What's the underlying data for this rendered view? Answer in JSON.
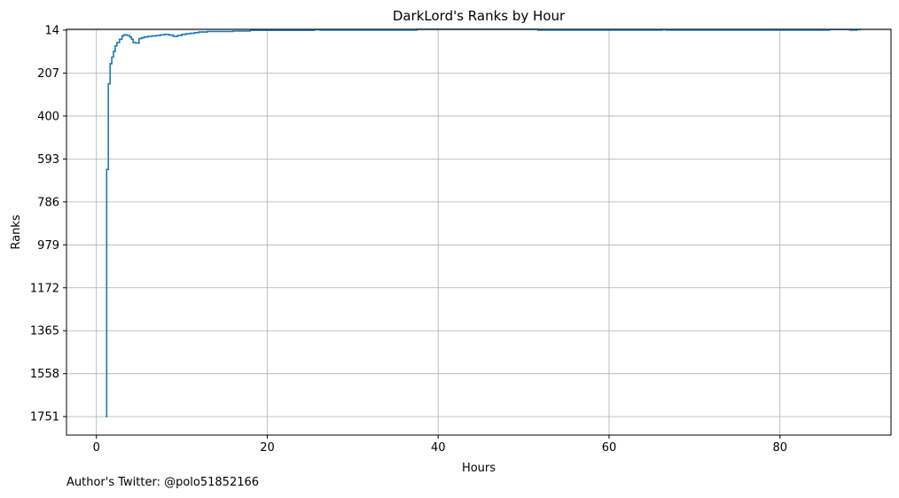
{
  "footer": {
    "text": "Author's Twitter: @polo51852166"
  },
  "colors": {
    "line": "#1f77b4",
    "grid": "#b0b0b0",
    "axis": "#000000",
    "background": "#ffffff"
  },
  "chart_data": {
    "type": "line",
    "drawstyle": "step",
    "title": "DarkLord's Ranks by Hour",
    "xlabel": "Hours",
    "ylabel": "Ranks",
    "y_inverted": true,
    "grid": true,
    "xlim": [
      -3.5,
      93
    ],
    "ylim": [
      1834,
      10
    ],
    "xticks": [
      0,
      20,
      40,
      60,
      80
    ],
    "xtick_labels": [
      "0",
      "20",
      "40",
      "60",
      "80"
    ],
    "yticks": [
      14,
      207,
      400,
      593,
      786,
      979,
      1172,
      1365,
      1558,
      1751
    ],
    "ytick_labels": [
      "14",
      "207",
      "400",
      "593",
      "786",
      "979",
      "1172",
      "1365",
      "1558",
      "1751"
    ],
    "series": [
      {
        "color": "#1f77b4",
        "x": [
          1.1,
          1.2,
          1.4,
          1.6,
          1.8,
          2.0,
          2.2,
          2.4,
          2.7,
          3.0,
          3.2,
          3.6,
          3.9,
          4.1,
          4.3,
          4.6,
          5.0,
          5.3,
          5.6,
          6.0,
          6.5,
          7.0,
          7.5,
          8.0,
          8.5,
          9.0,
          9.5,
          10.0,
          10.5,
          11.0,
          11.5,
          12.0,
          13.0,
          16.0,
          18.0,
          25.5,
          26.2,
          37.5,
          51.7,
          66.2,
          66.7,
          84.8,
          85.8,
          88.2,
          89.0,
          89.4
        ],
        "y": [
          1751,
          640,
          255,
          165,
          135,
          110,
          85,
          70,
          55,
          40,
          35,
          38,
          45,
          55,
          70,
          72,
          52,
          48,
          45,
          42,
          40,
          38,
          35,
          33,
          36,
          42,
          38,
          33,
          30,
          28,
          25,
          22,
          20,
          18,
          15,
          12,
          14,
          10,
          14,
          12,
          14,
          14,
          11,
          14,
          11,
          14
        ]
      }
    ]
  }
}
